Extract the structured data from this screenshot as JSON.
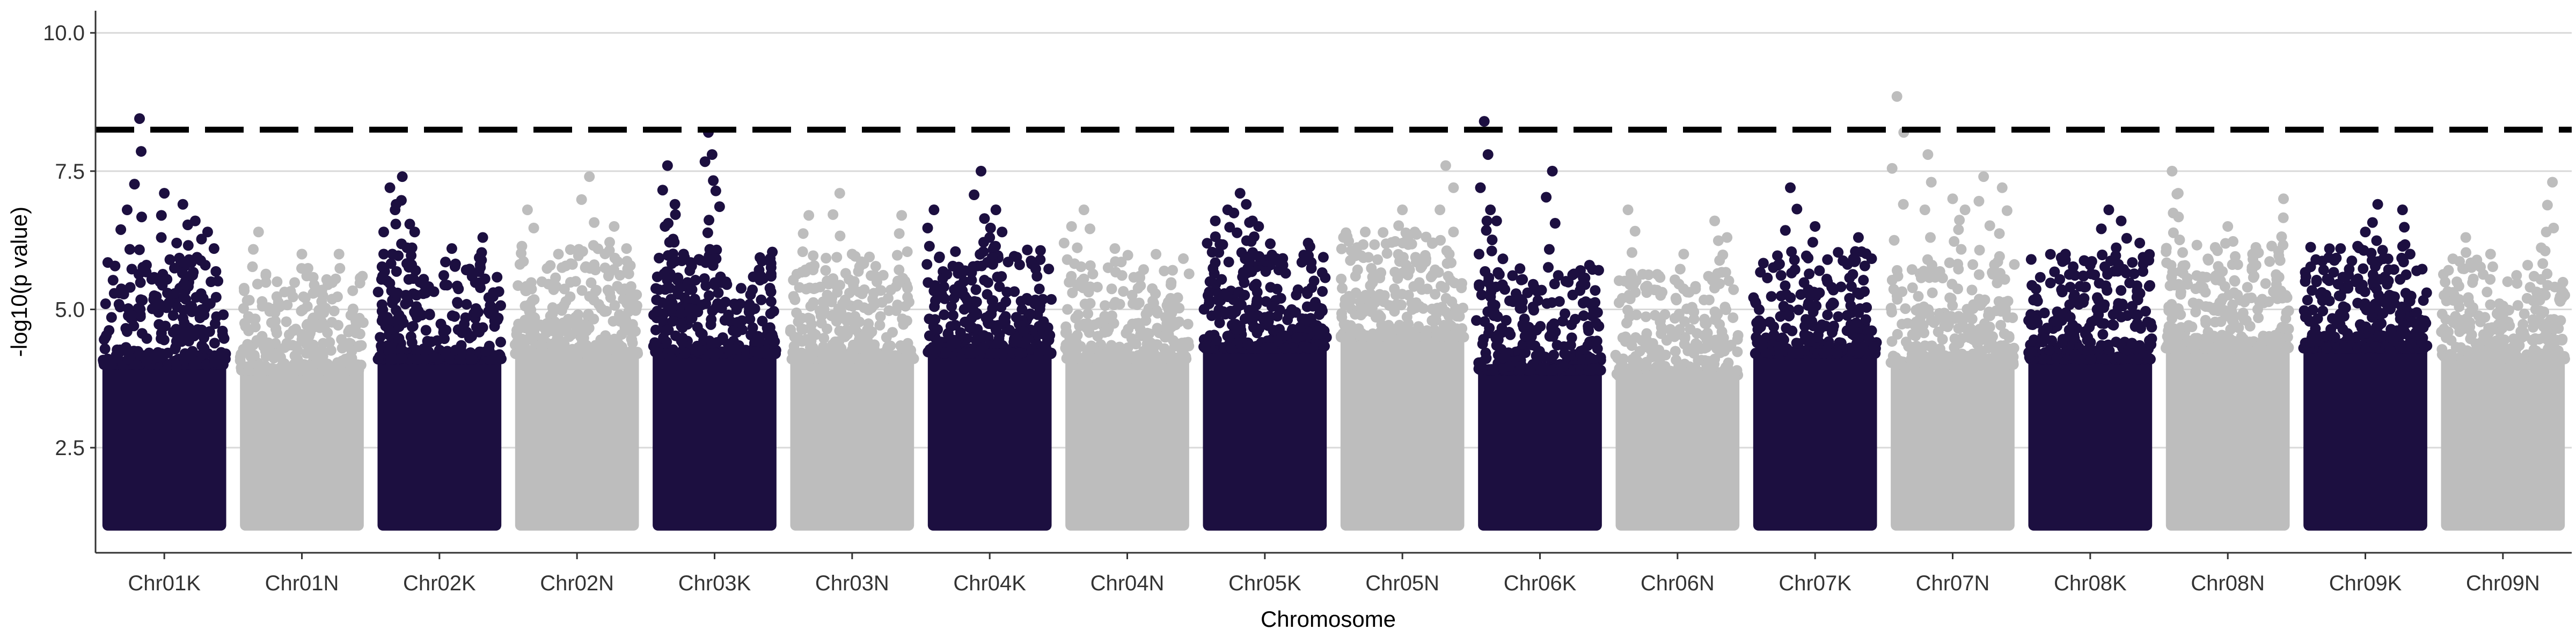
{
  "chart_data": {
    "type": "scatter",
    "title": "",
    "xlabel": "Chromosome",
    "ylabel": "-log10(p value)",
    "ylim": [
      0.6,
      10.4
    ],
    "y_ticks": [
      "2.5",
      "5.0",
      "7.5",
      "10.0"
    ],
    "y_tick_values": [
      2.5,
      5.0,
      7.5,
      10.0
    ],
    "grid": "horizontal major only",
    "legend": "none",
    "threshold": {
      "value": 8.25,
      "style": "dashed"
    },
    "colors": {
      "odd": "#1c0f40",
      "even": "#bdbdbd",
      "threshold": "#000000",
      "grid": "#d9d9d9",
      "axis": "#333333"
    },
    "categories": [
      "Chr01K",
      "Chr01N",
      "Chr02K",
      "Chr02N",
      "Chr03K",
      "Chr03N",
      "Chr04K",
      "Chr04N",
      "Chr05K",
      "Chr05N",
      "Chr06K",
      "Chr06N",
      "Chr07K",
      "Chr07N",
      "Chr08K",
      "Chr08N",
      "Chr09K",
      "Chr09N"
    ],
    "series": [
      {
        "color": "#1c0f40",
        "band_top": 4.3,
        "peaks": [
          [
            0.3,
            8.45
          ],
          [
            0.5,
            7.1
          ],
          [
            0.65,
            6.9
          ],
          [
            0.2,
            6.8
          ],
          [
            0.75,
            6.6
          ],
          [
            0.6,
            6.2
          ],
          [
            0.7,
            5.9
          ],
          [
            0.85,
            6.4
          ]
        ]
      },
      {
        "color": "#bdbdbd",
        "band_top": 4.2,
        "peaks": [
          [
            0.15,
            6.4
          ],
          [
            0.5,
            6.0
          ],
          [
            0.8,
            6.0
          ],
          [
            0.3,
            5.5
          ],
          [
            0.6,
            5.3
          ]
        ]
      },
      {
        "color": "#1c0f40",
        "band_top": 4.4,
        "peaks": [
          [
            0.1,
            7.2
          ],
          [
            0.2,
            7.4
          ],
          [
            0.15,
            6.9
          ],
          [
            0.3,
            6.4
          ],
          [
            0.6,
            6.1
          ],
          [
            0.85,
            6.3
          ],
          [
            0.05,
            6.0
          ]
        ]
      },
      {
        "color": "#bdbdbd",
        "band_top": 4.5,
        "peaks": [
          [
            0.1,
            6.8
          ],
          [
            0.6,
            7.4
          ],
          [
            0.35,
            6.0
          ],
          [
            0.8,
            6.5
          ],
          [
            0.9,
            6.1
          ]
        ]
      },
      {
        "color": "#1c0f40",
        "band_top": 4.5,
        "peaks": [
          [
            0.12,
            7.6
          ],
          [
            0.45,
            8.2
          ],
          [
            0.48,
            7.8
          ],
          [
            0.18,
            6.9
          ],
          [
            0.25,
            6.0
          ],
          [
            0.3,
            5.7
          ],
          [
            0.1,
            6.5
          ]
        ]
      },
      {
        "color": "#bdbdbd",
        "band_top": 4.4,
        "peaks": [
          [
            0.15,
            6.7
          ],
          [
            0.4,
            7.1
          ],
          [
            0.9,
            6.7
          ],
          [
            0.5,
            6.0
          ],
          [
            0.7,
            5.5
          ]
        ]
      },
      {
        "color": "#1c0f40",
        "band_top": 4.5,
        "peaks": [
          [
            0.05,
            6.8
          ],
          [
            0.43,
            7.5
          ],
          [
            0.55,
            6.8
          ],
          [
            0.5,
            6.3
          ],
          [
            0.6,
            6.4
          ],
          [
            0.3,
            5.7
          ],
          [
            0.8,
            5.2
          ]
        ]
      },
      {
        "color": "#bdbdbd",
        "band_top": 4.4,
        "peaks": [
          [
            0.05,
            6.5
          ],
          [
            0.15,
            6.8
          ],
          [
            0.4,
            6.1
          ],
          [
            0.6,
            5.6
          ],
          [
            0.85,
            5.2
          ]
        ]
      },
      {
        "color": "#1c0f40",
        "band_top": 4.6,
        "peaks": [
          [
            0.3,
            7.1
          ],
          [
            0.35,
            6.9
          ],
          [
            0.2,
            6.8
          ],
          [
            0.4,
            6.6
          ],
          [
            0.45,
            6.5
          ],
          [
            0.1,
            6.6
          ],
          [
            0.85,
            6.2
          ]
        ]
      },
      {
        "color": "#bdbdbd",
        "band_top": 4.8,
        "peaks": [
          [
            0.2,
            6.4
          ],
          [
            0.5,
            6.8
          ],
          [
            0.85,
            7.6
          ],
          [
            0.6,
            6.4
          ],
          [
            0.3,
            5.9
          ]
        ]
      },
      {
        "color": "#1c0f40",
        "band_top": 4.2,
        "peaks": [
          [
            0.05,
            8.4
          ],
          [
            0.1,
            6.8
          ],
          [
            0.6,
            7.5
          ],
          [
            0.15,
            6.6
          ],
          [
            0.9,
            5.8
          ],
          [
            0.4,
            5.3
          ]
        ]
      },
      {
        "color": "#bdbdbd",
        "band_top": 4.1,
        "peaks": [
          [
            0.1,
            6.8
          ],
          [
            0.55,
            6.0
          ],
          [
            0.8,
            6.6
          ],
          [
            0.9,
            6.3
          ],
          [
            0.75,
            5.6
          ]
        ]
      },
      {
        "color": "#1c0f40",
        "band_top": 4.5,
        "peaks": [
          [
            0.3,
            7.2
          ],
          [
            0.5,
            6.5
          ],
          [
            0.85,
            6.3
          ],
          [
            0.2,
            5.8
          ],
          [
            0.6,
            5.9
          ]
        ]
      },
      {
        "color": "#bdbdbd",
        "band_top": 4.3,
        "peaks": [
          [
            0.05,
            8.85
          ],
          [
            0.3,
            7.8
          ],
          [
            0.75,
            7.4
          ],
          [
            0.5,
            7.0
          ],
          [
            0.6,
            6.8
          ],
          [
            0.9,
            7.2
          ]
        ]
      },
      {
        "color": "#1c0f40",
        "band_top": 4.4,
        "peaks": [
          [
            0.3,
            6.0
          ],
          [
            0.65,
            6.8
          ],
          [
            0.75,
            6.6
          ],
          [
            0.9,
            6.2
          ],
          [
            0.5,
            5.8
          ]
        ]
      },
      {
        "color": "#bdbdbd",
        "band_top": 4.6,
        "peaks": [
          [
            0.05,
            7.5
          ],
          [
            0.1,
            7.1
          ],
          [
            0.5,
            6.5
          ],
          [
            0.95,
            7.0
          ],
          [
            0.7,
            6.0
          ]
        ]
      },
      {
        "color": "#1c0f40",
        "band_top": 4.6,
        "peaks": [
          [
            0.1,
            5.9
          ],
          [
            0.5,
            6.4
          ],
          [
            0.6,
            6.9
          ],
          [
            0.8,
            6.8
          ],
          [
            0.3,
            6.1
          ]
        ]
      },
      {
        "color": "#bdbdbd",
        "band_top": 4.4,
        "peaks": [
          [
            0.2,
            6.3
          ],
          [
            0.4,
            6.0
          ],
          [
            0.85,
            6.4
          ],
          [
            0.9,
            7.3
          ],
          [
            0.7,
            5.8
          ]
        ]
      }
    ]
  }
}
